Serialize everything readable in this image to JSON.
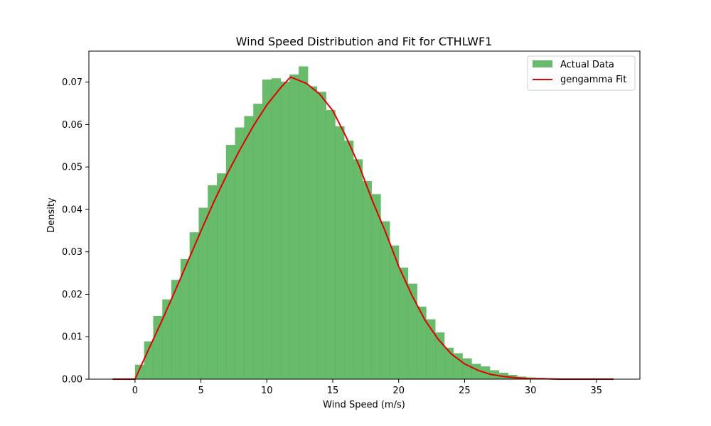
{
  "chart_data": {
    "type": "bar",
    "title": "Wind Speed Distribution and Fit for CTHLWF1",
    "xlabel": "Wind Speed (m/s)",
    "ylabel": "Density",
    "xlim": [
      -3.5,
      38.3
    ],
    "ylim": [
      0.0,
      0.0773
    ],
    "xticks": [
      0,
      5,
      10,
      15,
      20,
      25,
      30,
      35
    ],
    "yticks": [
      0.0,
      0.01,
      0.02,
      0.03,
      0.04,
      0.05,
      0.06,
      0.07
    ],
    "grid": false,
    "legend_position": "top-right",
    "colors": {
      "bars": "#4caf50",
      "fit_line": "#e00000"
    },
    "series": [
      {
        "name": "Actual Data",
        "kind": "histogram",
        "bin_start": 0.0,
        "bin_width": 0.69,
        "values": [
          0.0034,
          0.0089,
          0.0149,
          0.0188,
          0.0234,
          0.0283,
          0.0346,
          0.0404,
          0.0457,
          0.0485,
          0.0552,
          0.0593,
          0.062,
          0.0649,
          0.0706,
          0.0709,
          0.0701,
          0.0718,
          0.0737,
          0.069,
          0.0677,
          0.0634,
          0.0596,
          0.0562,
          0.0518,
          0.0467,
          0.0436,
          0.0372,
          0.0315,
          0.0263,
          0.0225,
          0.0171,
          0.0141,
          0.011,
          0.0074,
          0.0061,
          0.0049,
          0.0036,
          0.003,
          0.0021,
          0.0015,
          0.001,
          0.0006,
          0.0004,
          0.0003,
          0.0002,
          0.0001,
          0.0001,
          0.0001,
          0.0
        ]
      },
      {
        "name": "gengamma Fit",
        "kind": "line",
        "x": [
          -1.7,
          0.0,
          1,
          2,
          3,
          4,
          5,
          6,
          7,
          8,
          9,
          10,
          11,
          11.8,
          13,
          14,
          15,
          16,
          17,
          18,
          19,
          20,
          21,
          22,
          23,
          24,
          25,
          26,
          27,
          28,
          29,
          30,
          31,
          32,
          33,
          34,
          35,
          36.3
        ],
        "y": [
          0.0,
          0.0,
          0.0068,
          0.0135,
          0.0205,
          0.0277,
          0.0349,
          0.0419,
          0.0484,
          0.0543,
          0.0598,
          0.0646,
          0.0685,
          0.0712,
          0.0697,
          0.0672,
          0.0633,
          0.0572,
          0.0503,
          0.0421,
          0.0347,
          0.0266,
          0.0198,
          0.0139,
          0.0094,
          0.0059,
          0.0036,
          0.0021,
          0.0011,
          0.0006,
          0.0003,
          0.0001,
          0.0001,
          0.0,
          0.0,
          0.0,
          0.0,
          0.0
        ]
      }
    ]
  }
}
